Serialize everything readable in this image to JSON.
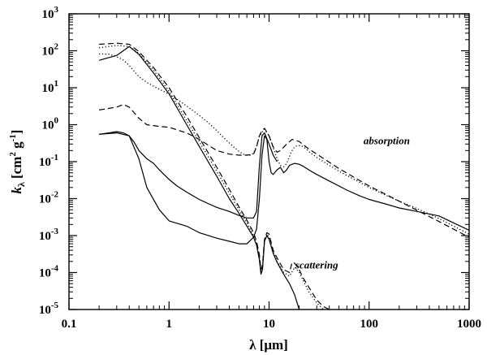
{
  "chart_data": {
    "type": "line",
    "title": "",
    "xlabel": "λ [μm]",
    "ylabel_main": "k",
    "ylabel_sub": "λ",
    "ylabel_unit_open": "[cm",
    "ylabel_unit_exp1": "2",
    "ylabel_unit_mid": " g",
    "ylabel_unit_exp2": "-1",
    "ylabel_unit_close": "]",
    "xscale": "log",
    "yscale": "log",
    "xlim": [
      0.1,
      1000
    ],
    "ylim": [
      1e-05,
      1000
    ],
    "grid": false,
    "legend": "none",
    "x_ticks": [
      {
        "value": 0.1,
        "label": "0.1"
      },
      {
        "value": 1,
        "label": "1"
      },
      {
        "value": 10,
        "label": "10"
      },
      {
        "value": 100,
        "label": "100"
      },
      {
        "value": 1000,
        "label": "1000"
      }
    ],
    "y_ticks": [
      {
        "exp": -5,
        "base": "10",
        "power": "-5"
      },
      {
        "exp": -4,
        "base": "10",
        "power": "-4"
      },
      {
        "exp": -3,
        "base": "10",
        "power": "-3"
      },
      {
        "exp": -2,
        "base": "10",
        "power": "-2"
      },
      {
        "exp": -1,
        "base": "10",
        "power": "-1"
      },
      {
        "exp": 0,
        "base": "10",
        "power": "0"
      },
      {
        "exp": 1,
        "base": "10",
        "power": "1"
      },
      {
        "exp": 2,
        "base": "10",
        "power": "2"
      },
      {
        "exp": 3,
        "base": "10",
        "power": "3"
      }
    ],
    "annotations": [
      {
        "text": "absorption",
        "x": 150,
        "y": 0.3
      },
      {
        "text": "scattering",
        "x": 30,
        "y": 0.00013
      }
    ],
    "series": [
      {
        "name": "absorption-solid",
        "style": "solid",
        "x": [
          0.2,
          0.3,
          0.4,
          0.5,
          0.6,
          0.8,
          1,
          1.5,
          2,
          3,
          4,
          5,
          6,
          7,
          7.5,
          8,
          8.5,
          9,
          9.5,
          10,
          10.5,
          11,
          12,
          13,
          14,
          15,
          16,
          18,
          20,
          22,
          25,
          30,
          40,
          60,
          80,
          100,
          150,
          200,
          300,
          500,
          700,
          1000
        ],
        "y": [
          0.55,
          0.6,
          0.5,
          0.12,
          0.02,
          0.005,
          0.0025,
          0.0018,
          0.0012,
          0.00085,
          0.0007,
          0.0006,
          0.0006,
          0.0009,
          0.0015,
          0.01,
          0.15,
          0.5,
          0.4,
          0.1,
          0.05,
          0.045,
          0.06,
          0.07,
          0.05,
          0.06,
          0.08,
          0.09,
          0.085,
          0.075,
          0.06,
          0.045,
          0.03,
          0.017,
          0.012,
          0.0095,
          0.007,
          0.0056,
          0.0045,
          0.0034,
          0.0022,
          0.0014
        ]
      },
      {
        "name": "absorption-dashed",
        "style": "dashed",
        "x": [
          0.2,
          0.3,
          0.35,
          0.4,
          0.5,
          0.6,
          0.8,
          1,
          1.5,
          2,
          3,
          4,
          5,
          6,
          7,
          7.5,
          8,
          8.5,
          9,
          10,
          11,
          12,
          13,
          15,
          17,
          20,
          25,
          30,
          50,
          100,
          200,
          500,
          1000
        ],
        "y": [
          2.5,
          3.0,
          3.5,
          3.0,
          1.5,
          1.0,
          0.9,
          0.85,
          0.6,
          0.4,
          0.2,
          0.16,
          0.15,
          0.15,
          0.16,
          0.25,
          0.5,
          0.7,
          0.8,
          0.5,
          0.25,
          0.18,
          0.2,
          0.3,
          0.4,
          0.35,
          0.22,
          0.16,
          0.065,
          0.022,
          0.0085,
          0.0024,
          0.0009
        ]
      },
      {
        "name": "absorption-dotted",
        "style": "dotted",
        "x": [
          0.2,
          0.25,
          0.3,
          0.35,
          0.4,
          0.5,
          0.6,
          0.7,
          0.8,
          0.9,
          1,
          1.2,
          1.5,
          2,
          2.5,
          3,
          3.5,
          4,
          4.5,
          5,
          5.5,
          6,
          6.5,
          7,
          7.5,
          8,
          9,
          10,
          11,
          12,
          13,
          14,
          15,
          16,
          17,
          18,
          19,
          20,
          21,
          22,
          23,
          24,
          25,
          26,
          28,
          30,
          35,
          40,
          50,
          60,
          80,
          100,
          150,
          200,
          300,
          500,
          700,
          1000
        ],
        "y": [
          82,
          81,
          69,
          56,
          40,
          20,
          14,
          11,
          9.1,
          7.8,
          6.6,
          4.9,
          3.2,
          1.8,
          1.1,
          0.69,
          0.45,
          0.32,
          0.24,
          0.19,
          0.16,
          0.15,
          0.15,
          0.17,
          0.26,
          0.49,
          0.75,
          0.5,
          0.24,
          0.12,
          0.079,
          0.073,
          0.089,
          0.14,
          0.2,
          0.25,
          0.27,
          0.27,
          0.27,
          0.25,
          0.23,
          0.21,
          0.19,
          0.17,
          0.15,
          0.13,
          0.1,
          0.08,
          0.055,
          0.042,
          0.028,
          0.02,
          0.012,
          0.0085,
          0.0054,
          0.0029,
          0.0018,
          0.0011
        ]
      },
      {
        "name": "absorption-solid-continued",
        "style": "solid",
        "x": [
          0.2,
          0.25,
          0.3,
          0.35,
          0.4,
          0.45,
          0.5,
          0.6,
          0.7,
          0.8,
          1,
          1.2,
          1.5,
          2,
          2.5,
          3,
          4,
          5,
          6,
          7,
          7.5,
          8,
          8.5,
          9,
          10,
          11,
          12
        ],
        "y": [
          0.55,
          0.6,
          0.65,
          0.6,
          0.5,
          0.33,
          0.2,
          0.12,
          0.09,
          0.06,
          0.033,
          0.022,
          0.015,
          0.0095,
          0.0072,
          0.0058,
          0.0045,
          0.0035,
          0.003,
          0.003,
          0.0045,
          0.08,
          0.5,
          0.6,
          0.3,
          0.15,
          0.1
        ]
      }
    ],
    "scattering_series": [
      {
        "name": "scattering-solid",
        "style": "solid",
        "x": [
          0.2,
          0.3,
          0.4,
          0.5,
          0.7,
          1,
          1.5,
          2,
          3,
          4,
          5,
          6,
          7,
          7.5,
          8,
          8.3,
          8.6,
          9,
          9.5,
          10,
          11,
          12,
          14,
          16,
          18,
          20
        ],
        "y": [
          55,
          75,
          130,
          80,
          25,
          6.8,
          1.0,
          0.26,
          0.04,
          0.01,
          0.004,
          0.0018,
          0.0009,
          0.00055,
          0.00022,
          9e-05,
          0.00012,
          0.0007,
          0.001,
          0.0008,
          0.00033,
          0.00019,
          9e-05,
          5e-05,
          2.5e-05,
          1e-05
        ]
      },
      {
        "name": "scattering-dashed",
        "style": "dashed",
        "x": [
          0.2,
          0.3,
          0.4,
          0.5,
          0.7,
          1,
          1.5,
          2,
          3,
          4,
          5,
          6,
          7,
          7.5,
          8,
          8.3,
          8.6,
          9,
          9.5,
          10,
          11,
          12,
          14,
          16,
          17,
          18,
          20,
          22,
          25,
          30,
          35,
          40
        ],
        "y": [
          150,
          160,
          150,
          95,
          35,
          10,
          1.7,
          0.45,
          0.07,
          0.018,
          0.006,
          0.0026,
          0.0012,
          0.0007,
          0.0003,
          0.00012,
          0.00016,
          0.0008,
          0.0012,
          0.0011,
          0.0004,
          0.00025,
          0.00012,
          0.0001,
          0.00019,
          0.00018,
          0.00012,
          7e-05,
          4e-05,
          1.8e-05,
          1.2e-05,
          1e-05
        ]
      },
      {
        "name": "scattering-dotted",
        "style": "dotted",
        "x": [
          0.2,
          0.3,
          0.4,
          0.5,
          0.7,
          1,
          1.5,
          2,
          3,
          4,
          5,
          6,
          7,
          7.5,
          8,
          8.3,
          8.6,
          9,
          9.5,
          10,
          11,
          12,
          14,
          16,
          18,
          20,
          22,
          25,
          30,
          35
        ],
        "y": [
          120,
          140,
          130,
          85,
          30,
          8,
          1.3,
          0.35,
          0.055,
          0.014,
          0.005,
          0.0022,
          0.001,
          0.0006,
          0.00025,
          0.0001,
          0.00014,
          0.00075,
          0.0011,
          0.0009,
          0.00035,
          0.0002,
          0.0001,
          8e-05,
          0.00014,
          0.0001,
          6e-05,
          3e-05,
          1.5e-05,
          1e-05
        ]
      }
    ]
  }
}
